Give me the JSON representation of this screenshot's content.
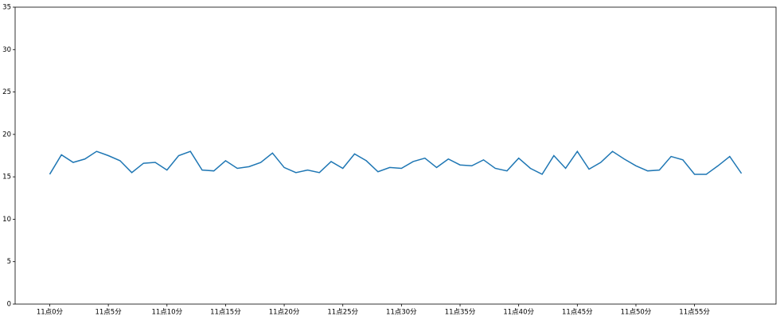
{
  "chart_data": {
    "type": "line",
    "categories": [
      "11点0分",
      null,
      null,
      null,
      null,
      "11点5分",
      null,
      null,
      null,
      null,
      "11点10分",
      null,
      null,
      null,
      null,
      "11点15分",
      null,
      null,
      null,
      null,
      "11点20分",
      null,
      null,
      null,
      null,
      "11点25分",
      null,
      null,
      null,
      null,
      "11点30分",
      null,
      null,
      null,
      null,
      "11点35分",
      null,
      null,
      null,
      null,
      "11点40分",
      null,
      null,
      null,
      null,
      "11点45分",
      null,
      null,
      null,
      null,
      "11点50分",
      null,
      null,
      null,
      null,
      "11点55分",
      null,
      null,
      null,
      null
    ],
    "series": [
      {
        "color": "#1f77b4",
        "values": [
          15.3,
          17.6,
          16.7,
          17.1,
          18.0,
          17.5,
          16.9,
          15.5,
          16.6,
          16.7,
          15.8,
          17.5,
          18.0,
          15.8,
          15.7,
          16.9,
          16.0,
          16.2,
          16.7,
          17.8,
          16.1,
          15.5,
          15.8,
          15.5,
          16.8,
          16.0,
          17.7,
          16.9,
          15.6,
          16.1,
          16.0,
          16.8,
          17.2,
          16.1,
          17.1,
          16.4,
          16.3,
          17.0,
          16.0,
          15.7,
          17.2,
          16.0,
          15.3,
          17.5,
          16.0,
          18.0,
          15.9,
          16.7,
          18.0,
          17.1,
          16.3,
          15.7,
          15.8,
          17.4,
          17.0,
          15.3,
          15.3,
          16.3,
          17.4,
          15.4
        ]
      }
    ],
    "ylim": [
      0,
      35
    ],
    "yticks": [
      0,
      5,
      10,
      15,
      20,
      25,
      30,
      35
    ],
    "grid": false
  }
}
